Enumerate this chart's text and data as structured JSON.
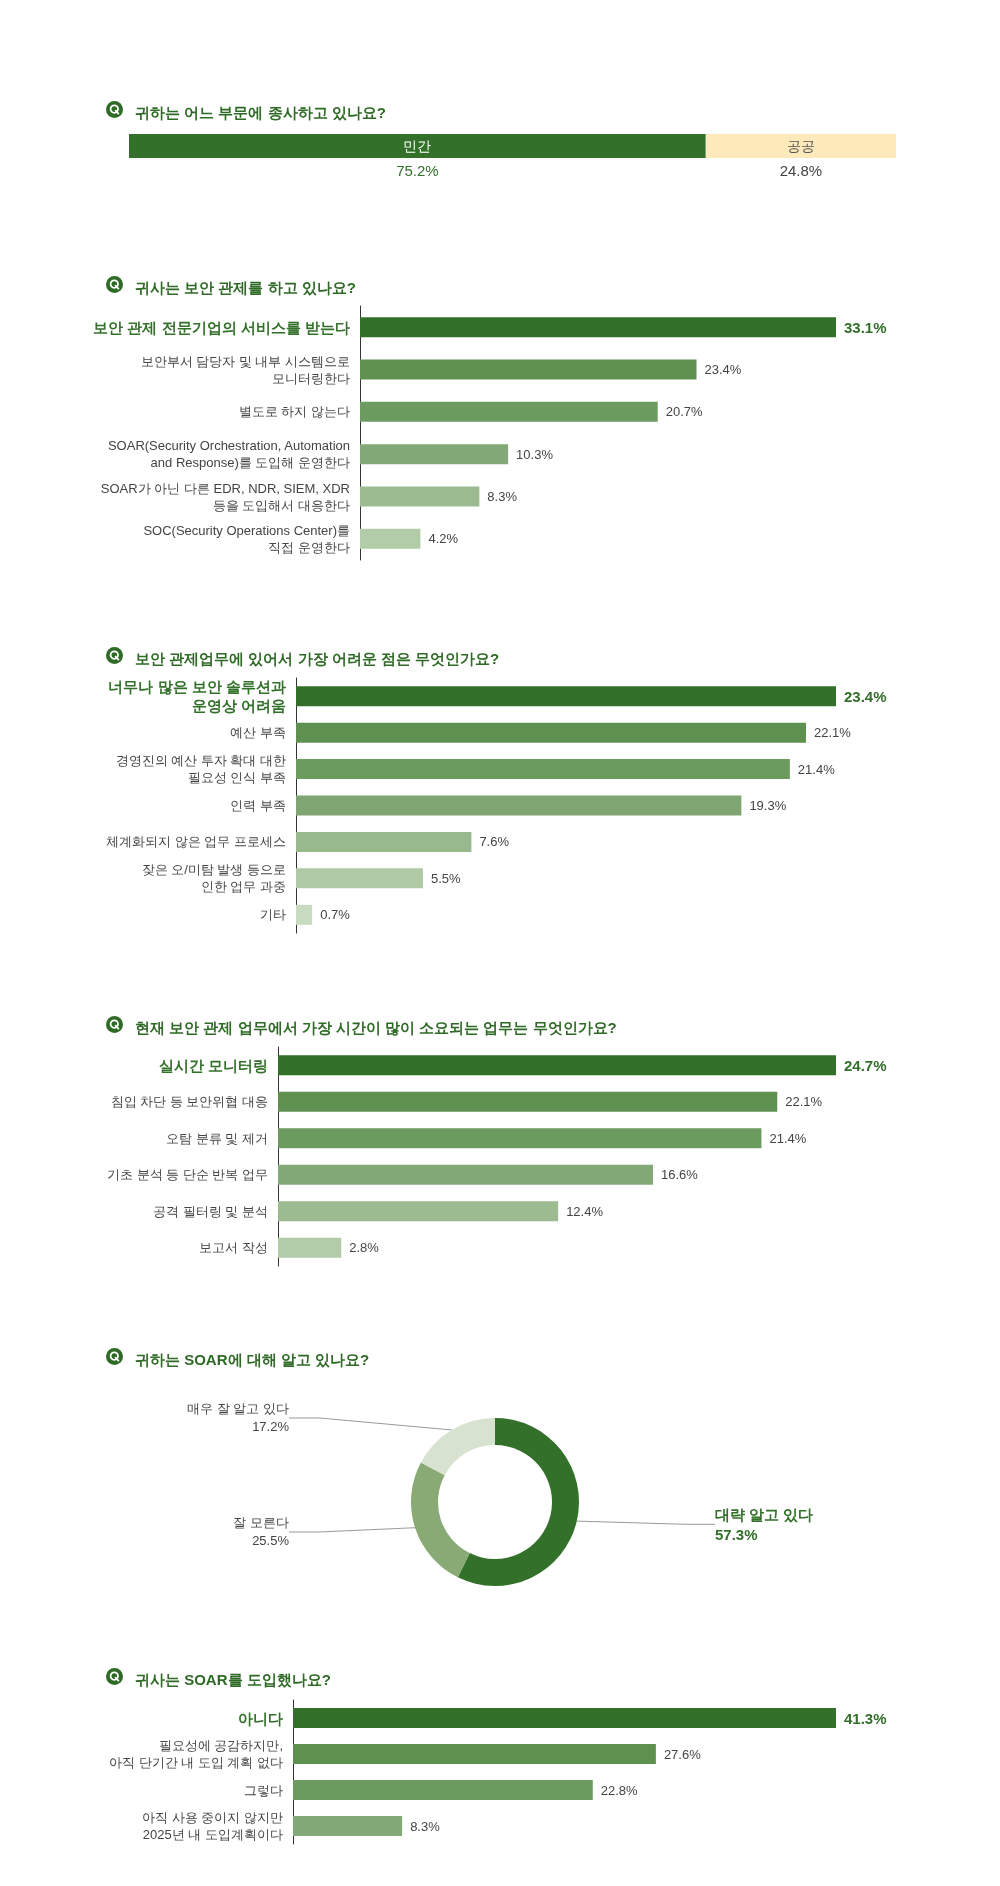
{
  "chart_data": [
    {
      "type": "bar",
      "orientation": "horizontal",
      "stacked": true,
      "title": "귀하는 어느 부문에 종사하고 있나요?",
      "categories": [
        null
      ],
      "series": [
        {
          "name": "민간",
          "color": "#33702a",
          "values": [
            75.2
          ],
          "value_labels": [
            "75.2%"
          ]
        },
        {
          "name": "공공",
          "color": "#fde9b9",
          "values": [
            24.8
          ],
          "value_labels": [
            "24.8%"
          ]
        }
      ],
      "tick_labels": false
    },
    {
      "type": "bar",
      "orientation": "horizontal",
      "title": "귀사는 보안 관제를 하고 있나요?",
      "categories": [
        "보안 관제 전문기업의 서비스를 받는다",
        "보안부서 담당자 및 내부 시스템으로\n모니터링한다",
        "별도로 하지 않는다",
        "SOAR(Security Orchestration, Automation\nand Response)를 도입해 운영한다",
        "SOAR가 아닌 다른 EDR, NDR, SIEM, XDR\n등을 도입해서 대응한다",
        "SOC(Security Operations Center)를\n직접 운영한다"
      ],
      "values": [
        33.1,
        23.4,
        20.7,
        10.3,
        8.3,
        4.2
      ],
      "colors": [
        "#33702a",
        "#5e9150",
        "#6b9b5f",
        "#84a978",
        "#9cbb90",
        "#b3cca8"
      ],
      "value_labels": [
        "33.1%",
        "23.4%",
        "20.7%",
        "10.3%",
        "8.3%",
        "4.2%"
      ],
      "tick_labels": "y"
    },
    {
      "type": "bar",
      "orientation": "horizontal",
      "title": "보안 관제업무에 있어서 가장 어려운 점은 무엇인가요?",
      "categories": [
        "너무나 많은 보안 솔루션과\n운영상 어려움",
        "예산 부족",
        "경영진의 예산 투자 확대 대한\n필요성 인식 부족",
        "인력 부족",
        "체계화되지 않은 업무 프로세스",
        "잦은 오/미탐 발생 등으로\n인한 업무 과중",
        "기타"
      ],
      "values": [
        23.4,
        22.1,
        21.4,
        19.3,
        7.6,
        5.5,
        0.7
      ],
      "colors": [
        "#33702a",
        "#5e9150",
        "#6b9b5f",
        "#7fa573",
        "#98b98c",
        "#b1caa6",
        "#c8dbc1"
      ],
      "value_labels": [
        "23.4%",
        "22.1%",
        "21.4%",
        "19.3%",
        "7.6%",
        "5.5%",
        "0.7%"
      ],
      "tick_labels": "y"
    },
    {
      "type": "bar",
      "orientation": "horizontal",
      "title": "현재 보안 관제 업무에서 가장 시간이 많이 소요되는 업무는 무엇인가요?",
      "categories": [
        "실시간 모니터링",
        "침입 차단 등 보안위협 대응",
        "오탐 분류 및 제거",
        "기초 분석 등 단순 반복 업무",
        "공격 필터링 및 분석",
        "보고서 작성"
      ],
      "values": [
        24.7,
        22.1,
        21.4,
        16.6,
        12.4,
        2.8
      ],
      "colors": [
        "#33702a",
        "#5e9150",
        "#6b9b5f",
        "#84a978",
        "#9cbb90",
        "#b3cca8"
      ],
      "value_labels": [
        "24.7%",
        "22.1%",
        "21.4%",
        "16.6%",
        "12.4%",
        "2.8%"
      ],
      "tick_labels": "y"
    },
    {
      "type": "donut",
      "title": "귀하는 SOAR에 대해 알고 있나요?",
      "categories": [
        "대략 알고 있다",
        "잘 모른다",
        "매우 잘 알고 있다"
      ],
      "values": [
        57.3,
        25.5,
        17.2
      ],
      "colors": [
        "#33702a",
        "#89aa74",
        "#d7e2d0"
      ],
      "value_labels": [
        "57.3%",
        "25.5%",
        "17.2%"
      ]
    },
    {
      "type": "bar",
      "orientation": "horizontal",
      "title": "귀사는 SOAR를 도입했나요?",
      "categories": [
        "아니다",
        "필요성에 공감하지만,\n아직 단기간 내 도입 계획 없다",
        "그렇다",
        "아직 사용 중이지 않지만\n2025년 내 도입계획이다"
      ],
      "values": [
        41.3,
        27.6,
        22.8,
        8.3
      ],
      "colors": [
        "#33702a",
        "#5e9150",
        "#6b9b5f",
        "#84a978"
      ],
      "value_labels": [
        "41.3%",
        "27.6%",
        "22.8%",
        "8.3%"
      ],
      "tick_labels": "y"
    }
  ]
}
